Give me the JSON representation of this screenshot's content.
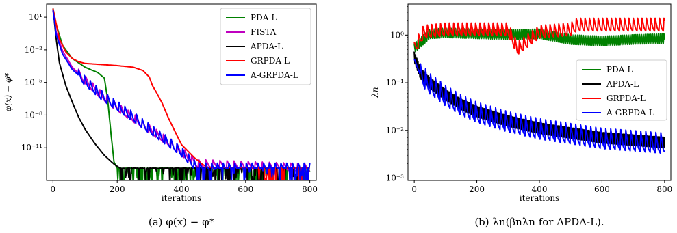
{
  "chart_data": [
    {
      "type": "line",
      "caption": "(a) φ(x) − φ*",
      "xlabel": "iterations",
      "ylabel": "φ(x) − φ*",
      "xlim": [
        -20,
        820
      ],
      "ylim_log10": [
        -14,
        2.2
      ],
      "yscale": "log",
      "xticks": [
        0,
        200,
        400,
        600,
        800
      ],
      "yticks": [
        {
          "exp": 1,
          "label": "10¹"
        },
        {
          "exp": -2,
          "label": "10⁻²"
        },
        {
          "exp": -5,
          "label": "10⁻⁵"
        },
        {
          "exp": -8,
          "label": "10⁻⁸"
        },
        {
          "exp": -11,
          "label": "10⁻¹¹"
        }
      ],
      "legend_position": "top-right",
      "series": [
        {
          "name": "PDA-L",
          "color": "#008000",
          "x": [
            0,
            10,
            30,
            60,
            100,
            140,
            160,
            170,
            180,
            190,
            200,
            800
          ],
          "log10_y": [
            1.8,
            0.3,
            -1.6,
            -2.8,
            -3.6,
            -4.1,
            -4.6,
            -6.5,
            -9.5,
            -12.3,
            -12.9,
            -12.9
          ]
        },
        {
          "name": "FISTA",
          "color": "#bf00bf",
          "x": [
            0,
            10,
            30,
            60,
            100,
            150,
            200,
            250,
            300,
            350,
            400,
            450,
            800
          ],
          "log10_y": [
            1.6,
            -0.4,
            -2.1,
            -3.6,
            -4.8,
            -6.2,
            -7.3,
            -8.3,
            -9.3,
            -10.3,
            -11.4,
            -12.5,
            -12.9
          ]
        },
        {
          "name": "APDA-L",
          "color": "#000000",
          "x": [
            0,
            10,
            20,
            40,
            60,
            80,
            100,
            130,
            160,
            190,
            210,
            220,
            800
          ],
          "log10_y": [
            1.8,
            -1.0,
            -3.2,
            -5.3,
            -6.8,
            -8.2,
            -9.3,
            -10.6,
            -11.7,
            -12.5,
            -12.9,
            -12.9,
            -12.9
          ]
        },
        {
          "name": "GRPDA-L",
          "color": "#ff0000",
          "x": [
            0,
            10,
            20,
            40,
            60,
            80,
            100,
            150,
            200,
            250,
            280,
            300,
            310,
            320,
            340,
            360,
            400,
            440,
            460,
            480,
            800
          ],
          "log10_y": [
            1.8,
            0.4,
            -1.0,
            -2.2,
            -2.8,
            -3.1,
            -3.25,
            -3.35,
            -3.45,
            -3.6,
            -3.9,
            -4.5,
            -5.3,
            -5.8,
            -6.9,
            -8.3,
            -10.7,
            -11.9,
            -12.4,
            -12.8,
            -12.9
          ]
        },
        {
          "name": "A-GRPDA-L",
          "color": "#0000ff",
          "x": [
            0,
            10,
            30,
            60,
            100,
            150,
            200,
            250,
            300,
            350,
            400,
            430,
            450,
            800
          ],
          "log10_y": [
            1.7,
            -0.6,
            -2.4,
            -3.8,
            -4.9,
            -6.2,
            -7.2,
            -8.2,
            -9.3,
            -10.3,
            -11.4,
            -12.3,
            -12.9,
            -12.9
          ]
        }
      ]
    },
    {
      "type": "line",
      "caption": "(b) λn(βnλn for APDA-L).",
      "xlabel": "iterations",
      "ylabel": "λn",
      "xlim": [
        -20,
        820
      ],
      "ylim_log10": [
        -3.05,
        0.65
      ],
      "yscale": "log",
      "xticks": [
        0,
        200,
        400,
        600,
        800
      ],
      "yticks": [
        {
          "exp": 0,
          "label": "10⁰"
        },
        {
          "exp": -1,
          "label": "10⁻¹"
        },
        {
          "exp": -2,
          "label": "10⁻²"
        },
        {
          "exp": -3,
          "label": "10⁻³"
        }
      ],
      "legend_position": "center-right",
      "series": [
        {
          "name": "PDA-L",
          "color": "#008000",
          "x": [
            0,
            50,
            100,
            200,
            300,
            400,
            500,
            600,
            700,
            800
          ],
          "log10_y": [
            -0.3,
            0.0,
            0.02,
            0.0,
            -0.02,
            0.0,
            -0.12,
            -0.15,
            -0.12,
            -0.1
          ]
        },
        {
          "name": "APDA-L",
          "color": "#000000",
          "x": [
            0,
            20,
            50,
            100,
            150,
            200,
            300,
            400,
            500,
            600,
            700,
            800
          ],
          "log10_y": [
            -0.5,
            -0.85,
            -1.05,
            -1.3,
            -1.5,
            -1.65,
            -1.85,
            -2.0,
            -2.1,
            -2.2,
            -2.25,
            -2.3
          ]
        },
        {
          "name": "GRPDA-L",
          "color": "#ff0000",
          "x": [
            0,
            30,
            100,
            200,
            300,
            330,
            400,
            500,
            520,
            600,
            700,
            800
          ],
          "log10_y": [
            -0.3,
            0.05,
            0.1,
            0.1,
            0.1,
            -0.3,
            0.05,
            0.1,
            0.2,
            0.2,
            0.2,
            0.2
          ]
        },
        {
          "name": "A-GRPDA-L",
          "color": "#0000ff",
          "x": [
            0,
            20,
            50,
            100,
            150,
            200,
            300,
            400,
            500,
            600,
            700,
            800
          ],
          "log10_y": [
            -0.5,
            -0.85,
            -1.05,
            -1.3,
            -1.5,
            -1.65,
            -1.85,
            -2.0,
            -2.1,
            -2.2,
            -2.25,
            -2.3
          ]
        }
      ]
    }
  ]
}
